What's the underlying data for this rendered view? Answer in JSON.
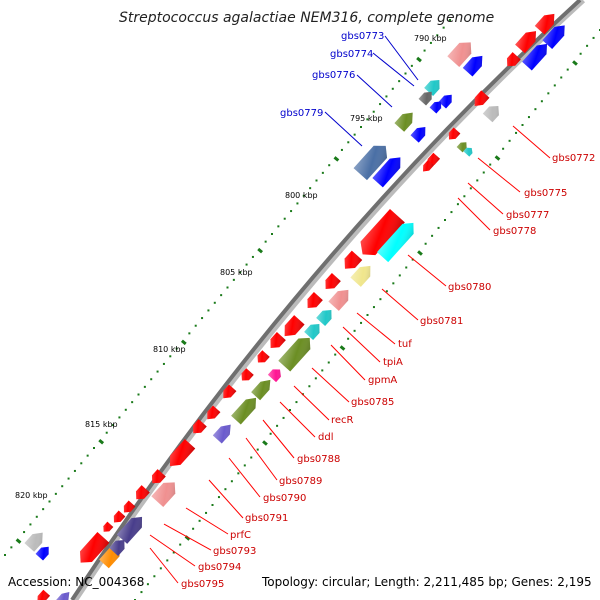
{
  "title": "Streptococcus agalactiae NEM316, complete genome",
  "footer": {
    "accession": "Accession: NC_004368",
    "topology": "Topology: circular; Length: 2,211,485 bp; Genes: 2,195"
  },
  "colors": {
    "forward_label": "#0000cc",
    "reverse_label": "#cc0000",
    "tick": "#1a7a1a",
    "backbone": "#777777",
    "cds_red": "#ff0000",
    "cds_blue": "#0000ff"
  },
  "kbp_markers": [
    {
      "label": "790 kbp",
      "anchor": "start"
    },
    {
      "label": "795 kbp",
      "anchor": "end"
    },
    {
      "label": "800 kbp",
      "anchor": "end"
    },
    {
      "label": "805 kbp",
      "anchor": "end"
    },
    {
      "label": "810 kbp",
      "anchor": "end"
    },
    {
      "label": "815 kbp",
      "anchor": "end"
    },
    {
      "label": "820 kbp",
      "anchor": "end"
    }
  ],
  "gene_labels": [
    {
      "name": "gbs0773",
      "strand": "forward"
    },
    {
      "name": "gbs0774",
      "strand": "forward"
    },
    {
      "name": "gbs0776",
      "strand": "forward"
    },
    {
      "name": "gbs0779",
      "strand": "forward"
    },
    {
      "name": "gbs0772",
      "strand": "reverse"
    },
    {
      "name": "gbs0775",
      "strand": "reverse"
    },
    {
      "name": "gbs0777",
      "strand": "reverse"
    },
    {
      "name": "gbs0778",
      "strand": "reverse"
    },
    {
      "name": "gbs0780",
      "strand": "reverse"
    },
    {
      "name": "gbs0781",
      "strand": "reverse"
    },
    {
      "name": "tuf",
      "strand": "reverse"
    },
    {
      "name": "tpiA",
      "strand": "reverse"
    },
    {
      "name": "gpmA",
      "strand": "reverse"
    },
    {
      "name": "gbs0785",
      "strand": "reverse"
    },
    {
      "name": "recR",
      "strand": "reverse"
    },
    {
      "name": "ddl",
      "strand": "reverse"
    },
    {
      "name": "gbs0788",
      "strand": "reverse"
    },
    {
      "name": "gbs0789",
      "strand": "reverse"
    },
    {
      "name": "gbs0790",
      "strand": "reverse"
    },
    {
      "name": "gbs0791",
      "strand": "reverse"
    },
    {
      "name": "prfC",
      "strand": "reverse"
    },
    {
      "name": "gbs0793",
      "strand": "reverse"
    },
    {
      "name": "gbs0794",
      "strand": "reverse"
    },
    {
      "name": "gbs0795",
      "strand": "reverse"
    }
  ]
}
